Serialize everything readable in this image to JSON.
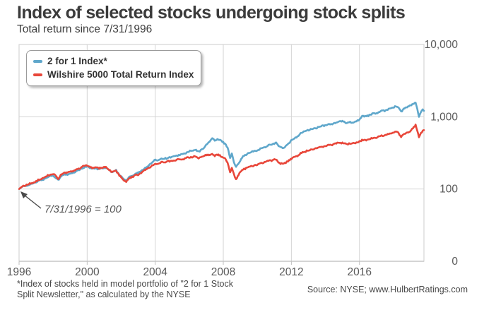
{
  "header": {
    "title": "Index of selected stocks undergoing stock splits",
    "subtitle": "Total return since 7/31/1996"
  },
  "legend": {
    "items": [
      {
        "label": "2 for 1 Index*",
        "color": "#5fa7cb"
      },
      {
        "label": "Wilshire 5000 Total Return Index",
        "color": "#e8473a"
      }
    ]
  },
  "annotation": {
    "text": "7/31/1996 = 100"
  },
  "footnote": {
    "line1": "*Index of stocks held in model portfolio of \"2 for 1 Stock",
    "line2": "Split Newsletter,\" as calculated by the NYSE"
  },
  "source": {
    "text": "Source: NYSE; www.HulbertRatings.com"
  },
  "colors": {
    "grid": "#d4d4d4",
    "axis": "#bfbfbf",
    "tick_text": "#5a5a5a",
    "blue": "#5fa7cb",
    "red": "#e8473a"
  },
  "chart_data": {
    "type": "line",
    "title": "Index of selected stocks undergoing stock splits",
    "subtitle": "Total return since 7/31/1996",
    "x_unit": "years since 7/31/1996",
    "x_start_label": "7/31/1996 = 100",
    "x_domain": [
      0,
      23.79
    ],
    "x_axis": {
      "tick_years": [
        1996,
        2000,
        2004,
        2008,
        2012,
        2016
      ]
    },
    "y_axis": {
      "scale": "log",
      "tick_values": [
        10000,
        1000,
        100,
        0
      ],
      "tick_labels": [
        "10,000",
        "1,000",
        "100",
        "0"
      ]
    },
    "grid": true,
    "legend_position": "top-left",
    "series": [
      {
        "name": "2 for 1 Index*",
        "color": "#5fa7cb",
        "points": [
          [
            0,
            100
          ],
          [
            0.25,
            109
          ],
          [
            0.5,
            113
          ],
          [
            0.75,
            118
          ],
          [
            1,
            124
          ],
          [
            1.25,
            131
          ],
          [
            1.5,
            139
          ],
          [
            1.75,
            148
          ],
          [
            1.95,
            155
          ],
          [
            2.1,
            147
          ],
          [
            2.3,
            134
          ],
          [
            2.5,
            152
          ],
          [
            2.7,
            158
          ],
          [
            2.9,
            161
          ],
          [
            3.1,
            166
          ],
          [
            3.3,
            172
          ],
          [
            3.5,
            181
          ],
          [
            3.7,
            193
          ],
          [
            3.85,
            201
          ],
          [
            4,
            206
          ],
          [
            4.15,
            197
          ],
          [
            4.3,
            188
          ],
          [
            4.5,
            196
          ],
          [
            4.7,
            188
          ],
          [
            4.9,
            196
          ],
          [
            5.1,
            199
          ],
          [
            5.3,
            183
          ],
          [
            5.5,
            171
          ],
          [
            5.7,
            181
          ],
          [
            5.9,
            158
          ],
          [
            6.1,
            140
          ],
          [
            6.3,
            131
          ],
          [
            6.45,
            146
          ],
          [
            6.6,
            152
          ],
          [
            6.8,
            160
          ],
          [
            7,
            167
          ],
          [
            7.3,
            186
          ],
          [
            7.6,
            212
          ],
          [
            8,
            250
          ],
          [
            8.3,
            260
          ],
          [
            8.6,
            266
          ],
          [
            8.9,
            274
          ],
          [
            9.2,
            286
          ],
          [
            9.5,
            298
          ],
          [
            9.8,
            316
          ],
          [
            10.1,
            336
          ],
          [
            10.35,
            348
          ],
          [
            10.55,
            326
          ],
          [
            10.8,
            364
          ],
          [
            11,
            402
          ],
          [
            11.2,
            465
          ],
          [
            11.35,
            498
          ],
          [
            11.5,
            468
          ],
          [
            11.65,
            488
          ],
          [
            11.8,
            470
          ],
          [
            11.95,
            455
          ],
          [
            12.1,
            428
          ],
          [
            12.25,
            372
          ],
          [
            12.4,
            272
          ],
          [
            12.5,
            312
          ],
          [
            12.62,
            235
          ],
          [
            12.75,
            198
          ],
          [
            12.9,
            232
          ],
          [
            13.1,
            272
          ],
          [
            13.4,
            308
          ],
          [
            13.7,
            326
          ],
          [
            14,
            344
          ],
          [
            14.3,
            368
          ],
          [
            14.6,
            398
          ],
          [
            14.9,
            422
          ],
          [
            15.1,
            432
          ],
          [
            15.3,
            386
          ],
          [
            15.55,
            366
          ],
          [
            15.8,
            416
          ],
          [
            16,
            470
          ],
          [
            16.3,
            525
          ],
          [
            16.6,
            600
          ],
          [
            16.9,
            645
          ],
          [
            17.2,
            672
          ],
          [
            17.5,
            706
          ],
          [
            17.8,
            742
          ],
          [
            18.1,
            772
          ],
          [
            18.4,
            800
          ],
          [
            18.7,
            838
          ],
          [
            19,
            872
          ],
          [
            19.2,
            818
          ],
          [
            19.45,
            852
          ],
          [
            19.7,
            830
          ],
          [
            19.95,
            906
          ],
          [
            20.15,
            1000
          ],
          [
            20.4,
            1028
          ],
          [
            20.7,
            1076
          ],
          [
            21,
            1128
          ],
          [
            21.3,
            1186
          ],
          [
            21.6,
            1248
          ],
          [
            21.9,
            1332
          ],
          [
            22.15,
            1408
          ],
          [
            22.3,
            1330
          ],
          [
            22.45,
            1178
          ],
          [
            22.6,
            1280
          ],
          [
            22.8,
            1360
          ],
          [
            23,
            1438
          ],
          [
            23.15,
            1496
          ],
          [
            23.3,
            1558
          ],
          [
            23.4,
            1300
          ],
          [
            23.5,
            985
          ],
          [
            23.62,
            1160
          ],
          [
            23.72,
            1248
          ],
          [
            23.79,
            1210
          ]
        ]
      },
      {
        "name": "Wilshire 5000 Total Return Index",
        "color": "#e8473a",
        "points": [
          [
            0,
            100
          ],
          [
            0.25,
            111
          ],
          [
            0.5,
            115
          ],
          [
            0.75,
            121
          ],
          [
            1,
            128
          ],
          [
            1.25,
            136
          ],
          [
            1.5,
            145
          ],
          [
            1.75,
            155
          ],
          [
            1.95,
            163
          ],
          [
            2.1,
            154
          ],
          [
            2.3,
            140
          ],
          [
            2.5,
            160
          ],
          [
            2.7,
            167
          ],
          [
            2.9,
            170
          ],
          [
            3.1,
            175
          ],
          [
            3.3,
            181
          ],
          [
            3.5,
            190
          ],
          [
            3.7,
            201
          ],
          [
            3.85,
            209
          ],
          [
            4,
            213
          ],
          [
            4.15,
            203
          ],
          [
            4.3,
            193
          ],
          [
            4.5,
            201
          ],
          [
            4.7,
            192
          ],
          [
            4.9,
            199
          ],
          [
            5.1,
            201
          ],
          [
            5.3,
            184
          ],
          [
            5.5,
            170
          ],
          [
            5.7,
            179
          ],
          [
            5.9,
            153
          ],
          [
            6.1,
            134
          ],
          [
            6.3,
            124
          ],
          [
            6.45,
            139
          ],
          [
            6.6,
            146
          ],
          [
            6.8,
            153
          ],
          [
            7,
            159
          ],
          [
            7.3,
            175
          ],
          [
            7.6,
            196
          ],
          [
            8,
            220
          ],
          [
            8.3,
            230
          ],
          [
            8.6,
            237
          ],
          [
            8.9,
            243
          ],
          [
            9.2,
            250
          ],
          [
            9.5,
            258
          ],
          [
            9.8,
            267
          ],
          [
            10.1,
            277
          ],
          [
            10.35,
            283
          ],
          [
            10.55,
            266
          ],
          [
            10.8,
            286
          ],
          [
            11,
            294
          ],
          [
            11.2,
            300
          ],
          [
            11.35,
            306
          ],
          [
            11.5,
            290
          ],
          [
            11.65,
            299
          ],
          [
            11.8,
            288
          ],
          [
            11.95,
            280
          ],
          [
            12.1,
            264
          ],
          [
            12.25,
            228
          ],
          [
            12.4,
            172
          ],
          [
            12.5,
            196
          ],
          [
            12.62,
            158
          ],
          [
            12.75,
            136
          ],
          [
            12.9,
            160
          ],
          [
            13.1,
            182
          ],
          [
            13.4,
            199
          ],
          [
            13.7,
            208
          ],
          [
            14,
            218
          ],
          [
            14.3,
            230
          ],
          [
            14.6,
            242
          ],
          [
            14.9,
            252
          ],
          [
            15.1,
            257
          ],
          [
            15.3,
            230
          ],
          [
            15.55,
            219
          ],
          [
            15.8,
            245
          ],
          [
            16,
            262
          ],
          [
            16.3,
            285
          ],
          [
            16.6,
            316
          ],
          [
            16.9,
            338
          ],
          [
            17.2,
            352
          ],
          [
            17.5,
            368
          ],
          [
            17.8,
            386
          ],
          [
            18.1,
            400
          ],
          [
            18.4,
            412
          ],
          [
            18.7,
            428
          ],
          [
            19,
            442
          ],
          [
            19.2,
            415
          ],
          [
            19.45,
            432
          ],
          [
            19.7,
            421
          ],
          [
            19.95,
            452
          ],
          [
            20.15,
            470
          ],
          [
            20.4,
            482
          ],
          [
            20.7,
            500
          ],
          [
            21,
            520
          ],
          [
            21.3,
            542
          ],
          [
            21.6,
            566
          ],
          [
            21.9,
            598
          ],
          [
            22.15,
            625
          ],
          [
            22.3,
            590
          ],
          [
            22.45,
            528
          ],
          [
            22.6,
            566
          ],
          [
            22.8,
            598
          ],
          [
            23,
            634
          ],
          [
            23.15,
            700
          ],
          [
            23.3,
            772
          ],
          [
            23.4,
            640
          ],
          [
            23.5,
            512
          ],
          [
            23.62,
            588
          ],
          [
            23.72,
            642
          ],
          [
            23.79,
            652
          ]
        ]
      }
    ]
  }
}
